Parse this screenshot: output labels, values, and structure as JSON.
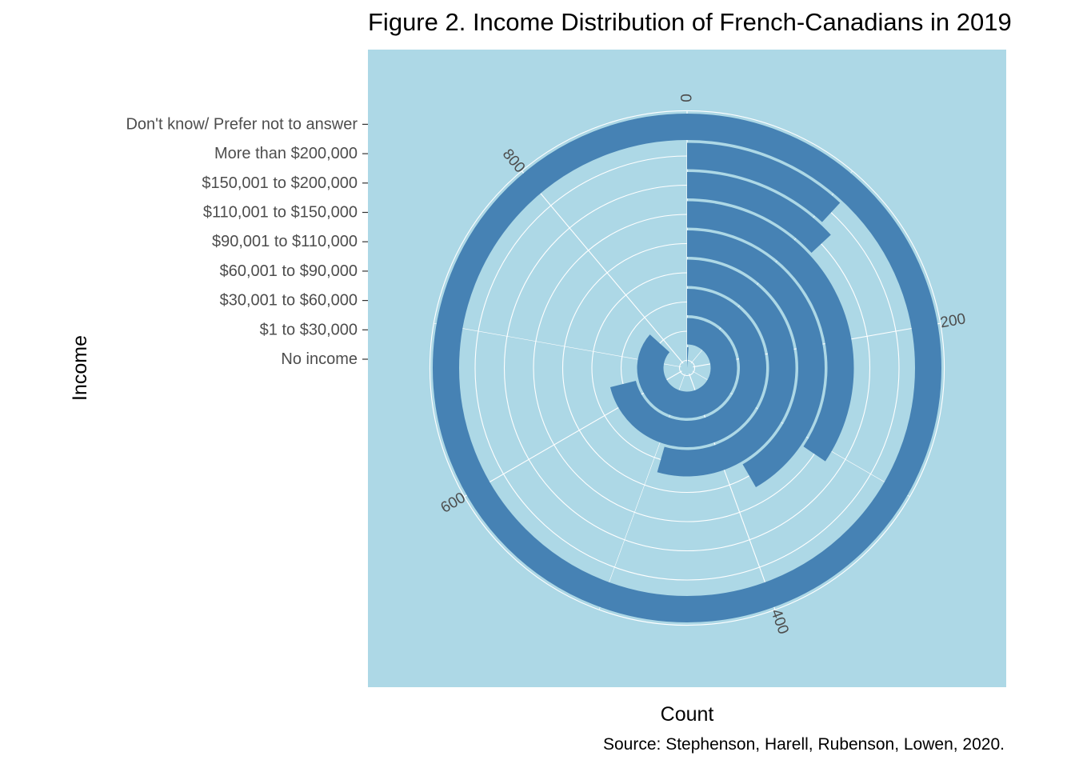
{
  "chart_data": {
    "type": "bar",
    "coord": "polar",
    "title": "Figure 2. Income Distribution of French-Canadians in 2019",
    "xlabel": "Income",
    "ylabel": "Count",
    "caption": "Source: Stephenson, Harell, Rubenson, Lowen, 2020.",
    "categories": [
      "No income",
      "$1 to $30,000",
      "$30,001 to $60,000",
      "$60,001 to $90,000",
      "$90,001 to $110,000",
      "$110,001 to $150,000",
      "$150,001 to $200,000",
      "More than $200,000",
      "Don't know/ Prefer not to answer"
    ],
    "values": [
      10,
      780,
      640,
      490,
      375,
      310,
      118,
      107,
      900
    ],
    "radial_ticks": [
      "0",
      "200",
      "400",
      "600",
      "800"
    ],
    "tick_values": [
      0,
      200,
      400,
      600,
      800
    ],
    "ylim": [
      0,
      900
    ],
    "colors": {
      "panel_background": "#add8e6",
      "bar_fill": "#4682b4",
      "grid": "#ffffff",
      "tick_label": "#4d4d4d"
    }
  }
}
